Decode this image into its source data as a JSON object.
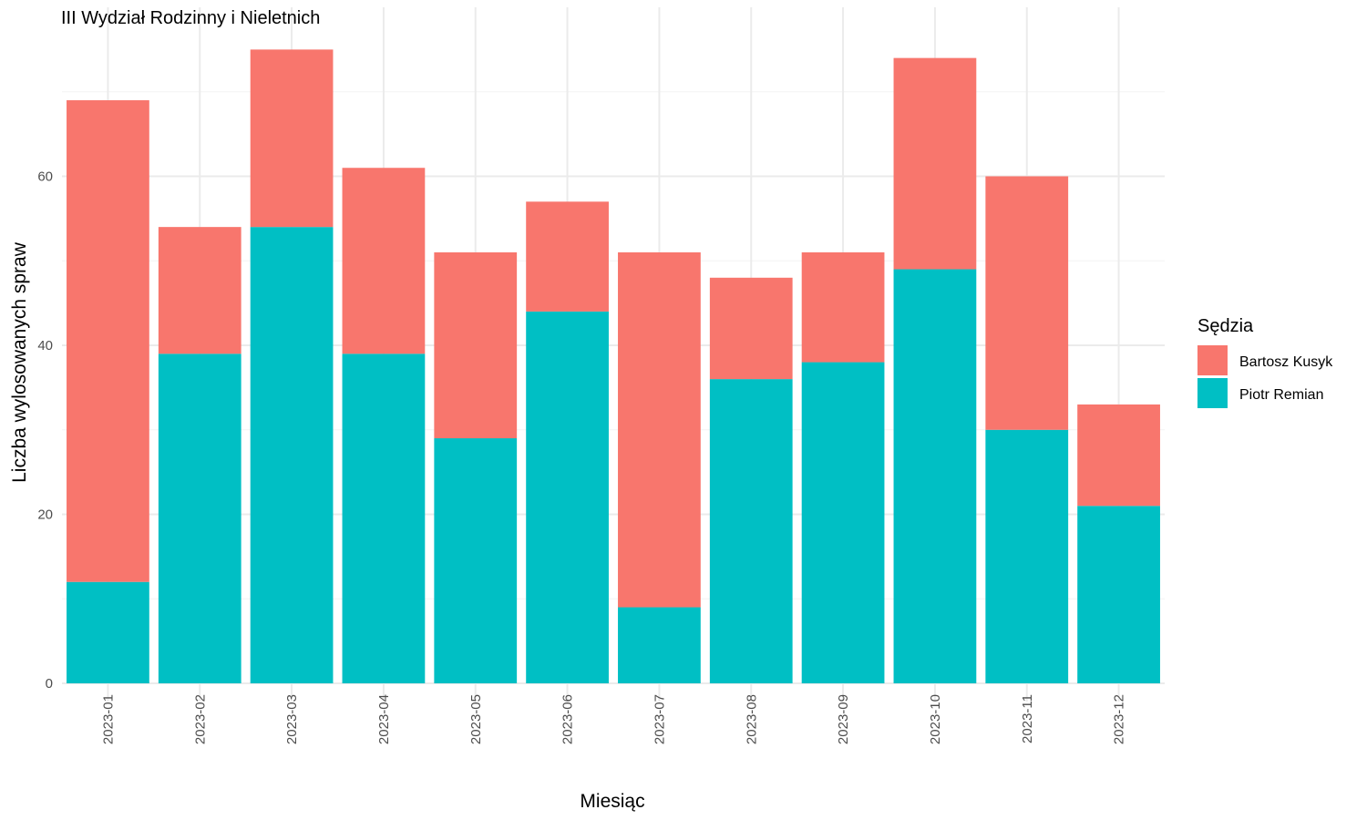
{
  "chart_data": {
    "type": "bar",
    "stacked": true,
    "title": "III Wydział Rodzinny i Nieletnich",
    "xlabel": "Miesiąc",
    "ylabel": "Liczba wylosowanych spraw",
    "categories": [
      "2023-01",
      "2023-02",
      "2023-03",
      "2023-04",
      "2023-05",
      "2023-06",
      "2023-07",
      "2023-08",
      "2023-09",
      "2023-10",
      "2023-11",
      "2023-12"
    ],
    "series": [
      {
        "name": "Piotr Remian",
        "color": "#00BFC4",
        "values": [
          12,
          39,
          54,
          39,
          29,
          44,
          9,
          36,
          38,
          49,
          30,
          21
        ]
      },
      {
        "name": "Bartosz Kusyk",
        "color": "#F8766D",
        "values": [
          57,
          15,
          21,
          22,
          22,
          13,
          42,
          12,
          13,
          25,
          30,
          12
        ]
      }
    ],
    "ylim": [
      0,
      80
    ],
    "yticks": [
      0,
      20,
      40,
      60
    ],
    "grid": true,
    "legend": {
      "title": "Sędzia",
      "position": "right",
      "entries": [
        {
          "label": "Bartosz Kusyk",
          "color": "#F8766D"
        },
        {
          "label": "Piotr Remian",
          "color": "#00BFC4"
        }
      ]
    }
  }
}
